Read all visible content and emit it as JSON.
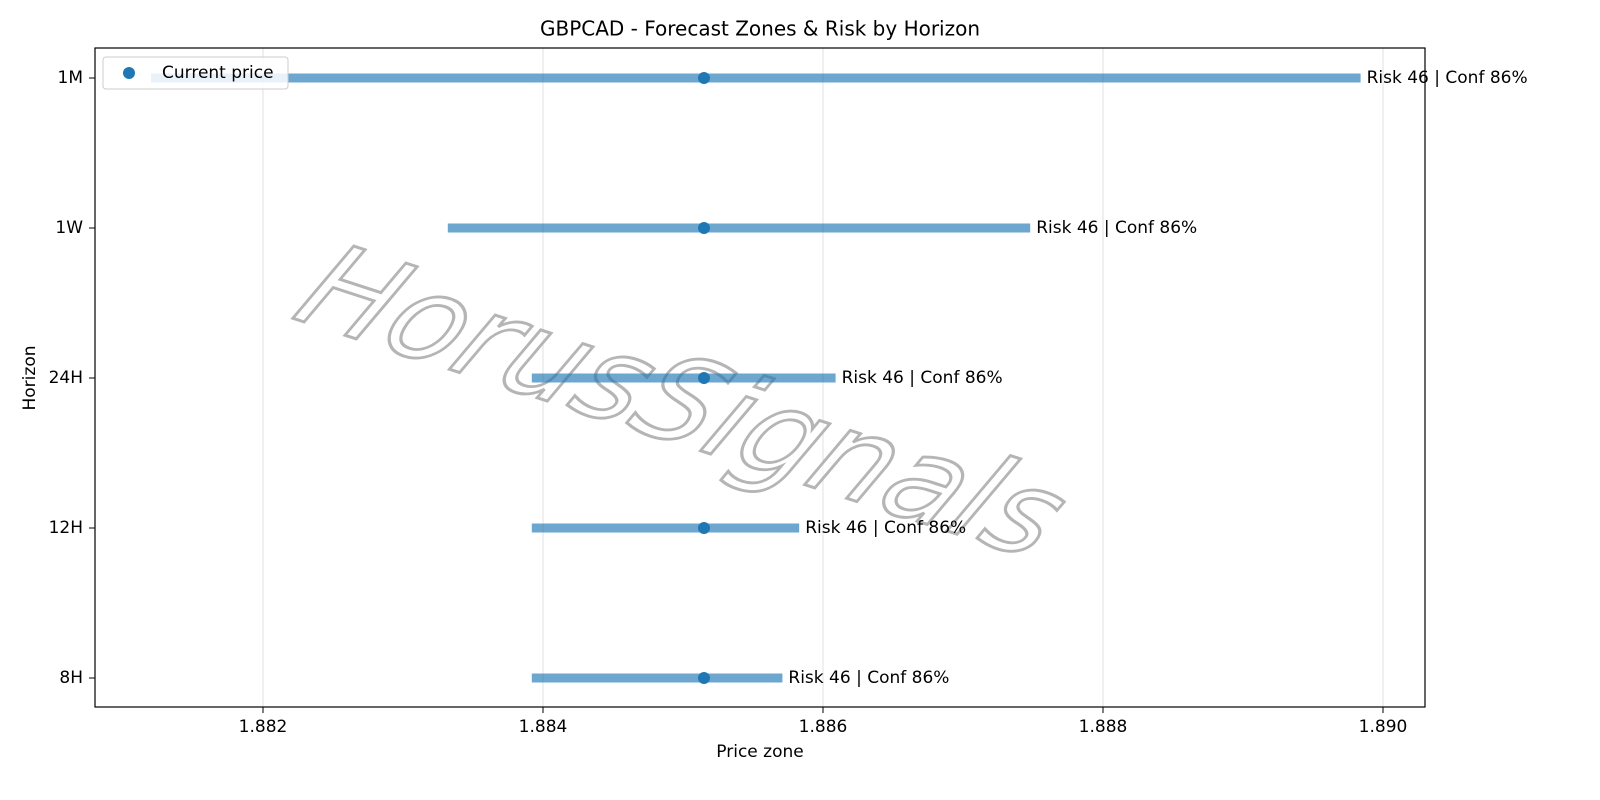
{
  "chart_data": {
    "type": "range",
    "title": "GBPCAD - Forecast Zones & Risk by Horizon",
    "x_label": "Price zone",
    "y_label": "Horizon",
    "watermark": "HorusSignals",
    "categories": [
      "8H",
      "12H",
      "24H",
      "1W",
      "1M"
    ],
    "low": [
      1.88392,
      1.88392,
      1.88392,
      1.88332,
      1.8812
    ],
    "high": [
      1.88571,
      1.88583,
      1.88609,
      1.88748,
      1.88984
    ],
    "zone_color": "#1f77b4",
    "bar_labels": [
      "Risk 46 | Conf 86%",
      "Risk 46 | Conf 86%",
      "Risk 46 | Conf 86%",
      "Risk 46 | Conf 86%",
      "Risk 46 | Conf 86%"
    ],
    "series": [
      {
        "name": "Current price",
        "color": "#1f77b4",
        "values": [
          1.88515,
          1.88515,
          1.88515,
          1.88515,
          1.88515
        ]
      }
    ],
    "xlim": [
      1.8808,
      1.8903
    ],
    "xticks": [
      1.882,
      1.884,
      1.886,
      1.888,
      {
        "value": 1.89,
        "label": "1.890"
      }
    ],
    "grid": "x",
    "legend": "upper-left"
  }
}
